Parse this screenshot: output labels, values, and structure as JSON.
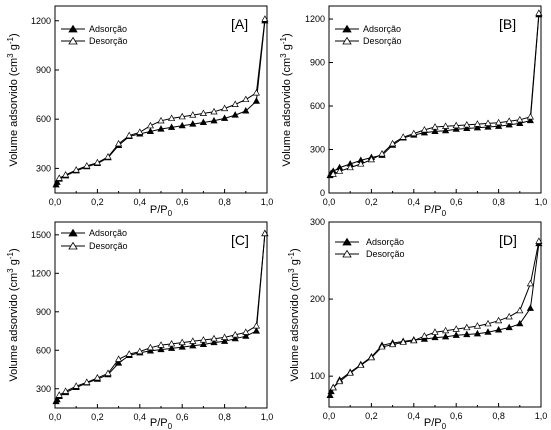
{
  "chart_data": [
    {
      "type": "line",
      "panel_label": "[A]",
      "xlabel": "P/P0",
      "ylabel": "Volume adsorvido (cm³ g⁻¹)",
      "xlim": [
        0.0,
        1.0
      ],
      "ylim": [
        150,
        1290
      ],
      "xticks": [
        0.0,
        0.2,
        0.4,
        0.6,
        0.8,
        1.0
      ],
      "xticklabels": [
        "0,0",
        "0,2",
        "0,4",
        "0,6",
        "0,8",
        "1,0"
      ],
      "yticks": [
        300,
        600,
        900,
        1200
      ],
      "yticklabels": [
        "300",
        "600",
        "900",
        "1200"
      ],
      "legend_position": "top-left",
      "series": [
        {
          "name": "Adsorção",
          "marker": "filled-triangle",
          "x": [
            0.005,
            0.01,
            0.02,
            0.05,
            0.1,
            0.15,
            0.2,
            0.25,
            0.3,
            0.35,
            0.4,
            0.45,
            0.5,
            0.55,
            0.6,
            0.65,
            0.7,
            0.75,
            0.8,
            0.85,
            0.9,
            0.95,
            0.99
          ],
          "y": [
            200,
            215,
            235,
            255,
            285,
            310,
            330,
            365,
            440,
            495,
            510,
            525,
            540,
            550,
            560,
            570,
            580,
            590,
            605,
            625,
            650,
            710,
            1200
          ]
        },
        {
          "name": "Desorção",
          "marker": "open-triangle",
          "x": [
            0.99,
            0.95,
            0.9,
            0.85,
            0.8,
            0.75,
            0.7,
            0.65,
            0.6,
            0.55,
            0.5,
            0.45,
            0.4,
            0.35,
            0.3,
            0.25,
            0.2,
            0.15,
            0.1,
            0.05,
            0.02
          ],
          "y": [
            1210,
            760,
            720,
            690,
            665,
            645,
            635,
            625,
            615,
            605,
            590,
            560,
            520,
            500,
            450,
            370,
            335,
            315,
            290,
            260,
            240
          ]
        }
      ]
    },
    {
      "type": "line",
      "panel_label": "[B]",
      "xlabel": "P/P0",
      "ylabel": "Volume adsorvido (cm³ g⁻¹)",
      "xlim": [
        0.0,
        1.0
      ],
      "ylim": [
        0,
        1290
      ],
      "xticks": [
        0.0,
        0.2,
        0.4,
        0.6,
        0.8,
        1.0
      ],
      "xticklabels": [
        "0,0",
        "0,2",
        "0,4",
        "0,6",
        "0,8",
        "1,0"
      ],
      "yticks": [
        0,
        300,
        600,
        900,
        1200
      ],
      "yticklabels": [
        "0",
        "300",
        "600",
        "900",
        "1200"
      ],
      "legend_position": "top-left",
      "series": [
        {
          "name": "Adsorção",
          "marker": "filled-triangle",
          "x": [
            0.005,
            0.01,
            0.02,
            0.05,
            0.1,
            0.15,
            0.2,
            0.25,
            0.3,
            0.35,
            0.4,
            0.45,
            0.5,
            0.55,
            0.6,
            0.65,
            0.7,
            0.75,
            0.8,
            0.85,
            0.9,
            0.95,
            0.99
          ],
          "y": [
            120,
            135,
            150,
            175,
            200,
            225,
            245,
            260,
            330,
            380,
            400,
            415,
            425,
            430,
            440,
            445,
            450,
            455,
            460,
            470,
            480,
            500,
            1230
          ]
        },
        {
          "name": "Desorção",
          "marker": "open-triangle",
          "x": [
            0.99,
            0.95,
            0.9,
            0.85,
            0.8,
            0.75,
            0.7,
            0.65,
            0.6,
            0.55,
            0.5,
            0.45,
            0.4,
            0.35,
            0.3,
            0.25,
            0.2,
            0.15,
            0.1,
            0.05,
            0.02
          ],
          "y": [
            1240,
            525,
            505,
            495,
            485,
            480,
            475,
            470,
            465,
            460,
            455,
            435,
            410,
            385,
            340,
            270,
            230,
            200,
            175,
            150,
            130
          ]
        }
      ]
    },
    {
      "type": "line",
      "panel_label": "[C]",
      "xlabel": "P/P0",
      "ylabel": "Volume adsorvido (cm³ g⁻¹)",
      "xlim": [
        0.0,
        1.0
      ],
      "ylim": [
        150,
        1600
      ],
      "xticks": [
        0.0,
        0.2,
        0.4,
        0.6,
        0.8,
        1.0
      ],
      "xticklabels": [
        "0,0",
        "0,2",
        "0,4",
        "0,6",
        "0,8",
        "1,0"
      ],
      "yticks": [
        300,
        600,
        900,
        1200,
        1500
      ],
      "yticklabels": [
        "300",
        "600",
        "900",
        "1200",
        "1500"
      ],
      "legend_position": "top-left",
      "series": [
        {
          "name": "Adsorção",
          "marker": "filled-triangle",
          "x": [
            0.005,
            0.01,
            0.02,
            0.05,
            0.1,
            0.15,
            0.2,
            0.25,
            0.3,
            0.35,
            0.4,
            0.45,
            0.5,
            0.55,
            0.6,
            0.65,
            0.7,
            0.75,
            0.8,
            0.85,
            0.9,
            0.95,
            0.99
          ],
          "y": [
            200,
            215,
            240,
            270,
            310,
            345,
            375,
            410,
            500,
            560,
            580,
            595,
            605,
            615,
            625,
            635,
            645,
            660,
            670,
            690,
            710,
            750,
            1510
          ]
        },
        {
          "name": "Desorção",
          "marker": "open-triangle",
          "x": [
            0.99,
            0.95,
            0.9,
            0.85,
            0.8,
            0.75,
            0.7,
            0.65,
            0.6,
            0.55,
            0.5,
            0.45,
            0.4,
            0.35,
            0.3,
            0.25,
            0.2,
            0.15,
            0.1,
            0.05,
            0.02
          ],
          "y": [
            1510,
            790,
            740,
            720,
            700,
            690,
            680,
            670,
            660,
            650,
            640,
            620,
            590,
            570,
            530,
            420,
            385,
            350,
            320,
            280,
            250
          ]
        }
      ]
    },
    {
      "type": "line",
      "panel_label": "[D]",
      "xlabel": "P/P0",
      "ylabel": "Volume adsorvido (cm³ g⁻¹)",
      "xlim": [
        0.0,
        1.0
      ],
      "ylim": [
        60,
        300
      ],
      "xticks": [
        0.0,
        0.2,
        0.4,
        0.6,
        0.8,
        1.0
      ],
      "xticklabels": [
        "0,0",
        "0,2",
        "0,4",
        "0,6",
        "0,8",
        "1,0"
      ],
      "yticks": [
        100,
        200,
        300
      ],
      "yticklabels": [
        "100",
        "200",
        "300"
      ],
      "legend_position": "top-right",
      "series": [
        {
          "name": "Adsorção",
          "marker": "filled-triangle",
          "x": [
            0.005,
            0.01,
            0.02,
            0.05,
            0.1,
            0.15,
            0.2,
            0.25,
            0.3,
            0.35,
            0.4,
            0.45,
            0.5,
            0.55,
            0.6,
            0.65,
            0.7,
            0.75,
            0.8,
            0.85,
            0.9,
            0.95,
            0.99
          ],
          "y": [
            75,
            80,
            85,
            95,
            105,
            115,
            125,
            140,
            143,
            145,
            147,
            148,
            150,
            151,
            153,
            154,
            155,
            157,
            160,
            163,
            168,
            188,
            272
          ]
        },
        {
          "name": "Desorção",
          "marker": "open-triangle",
          "x": [
            0.99,
            0.95,
            0.9,
            0.85,
            0.8,
            0.75,
            0.7,
            0.65,
            0.6,
            0.55,
            0.5,
            0.45,
            0.4,
            0.35,
            0.3,
            0.25,
            0.2,
            0.15,
            0.1,
            0.05,
            0.02
          ],
          "y": [
            275,
            220,
            185,
            177,
            172,
            168,
            165,
            163,
            161,
            159,
            157,
            152,
            146,
            144,
            141,
            138,
            124,
            114,
            104,
            93,
            85
          ]
        }
      ]
    }
  ]
}
